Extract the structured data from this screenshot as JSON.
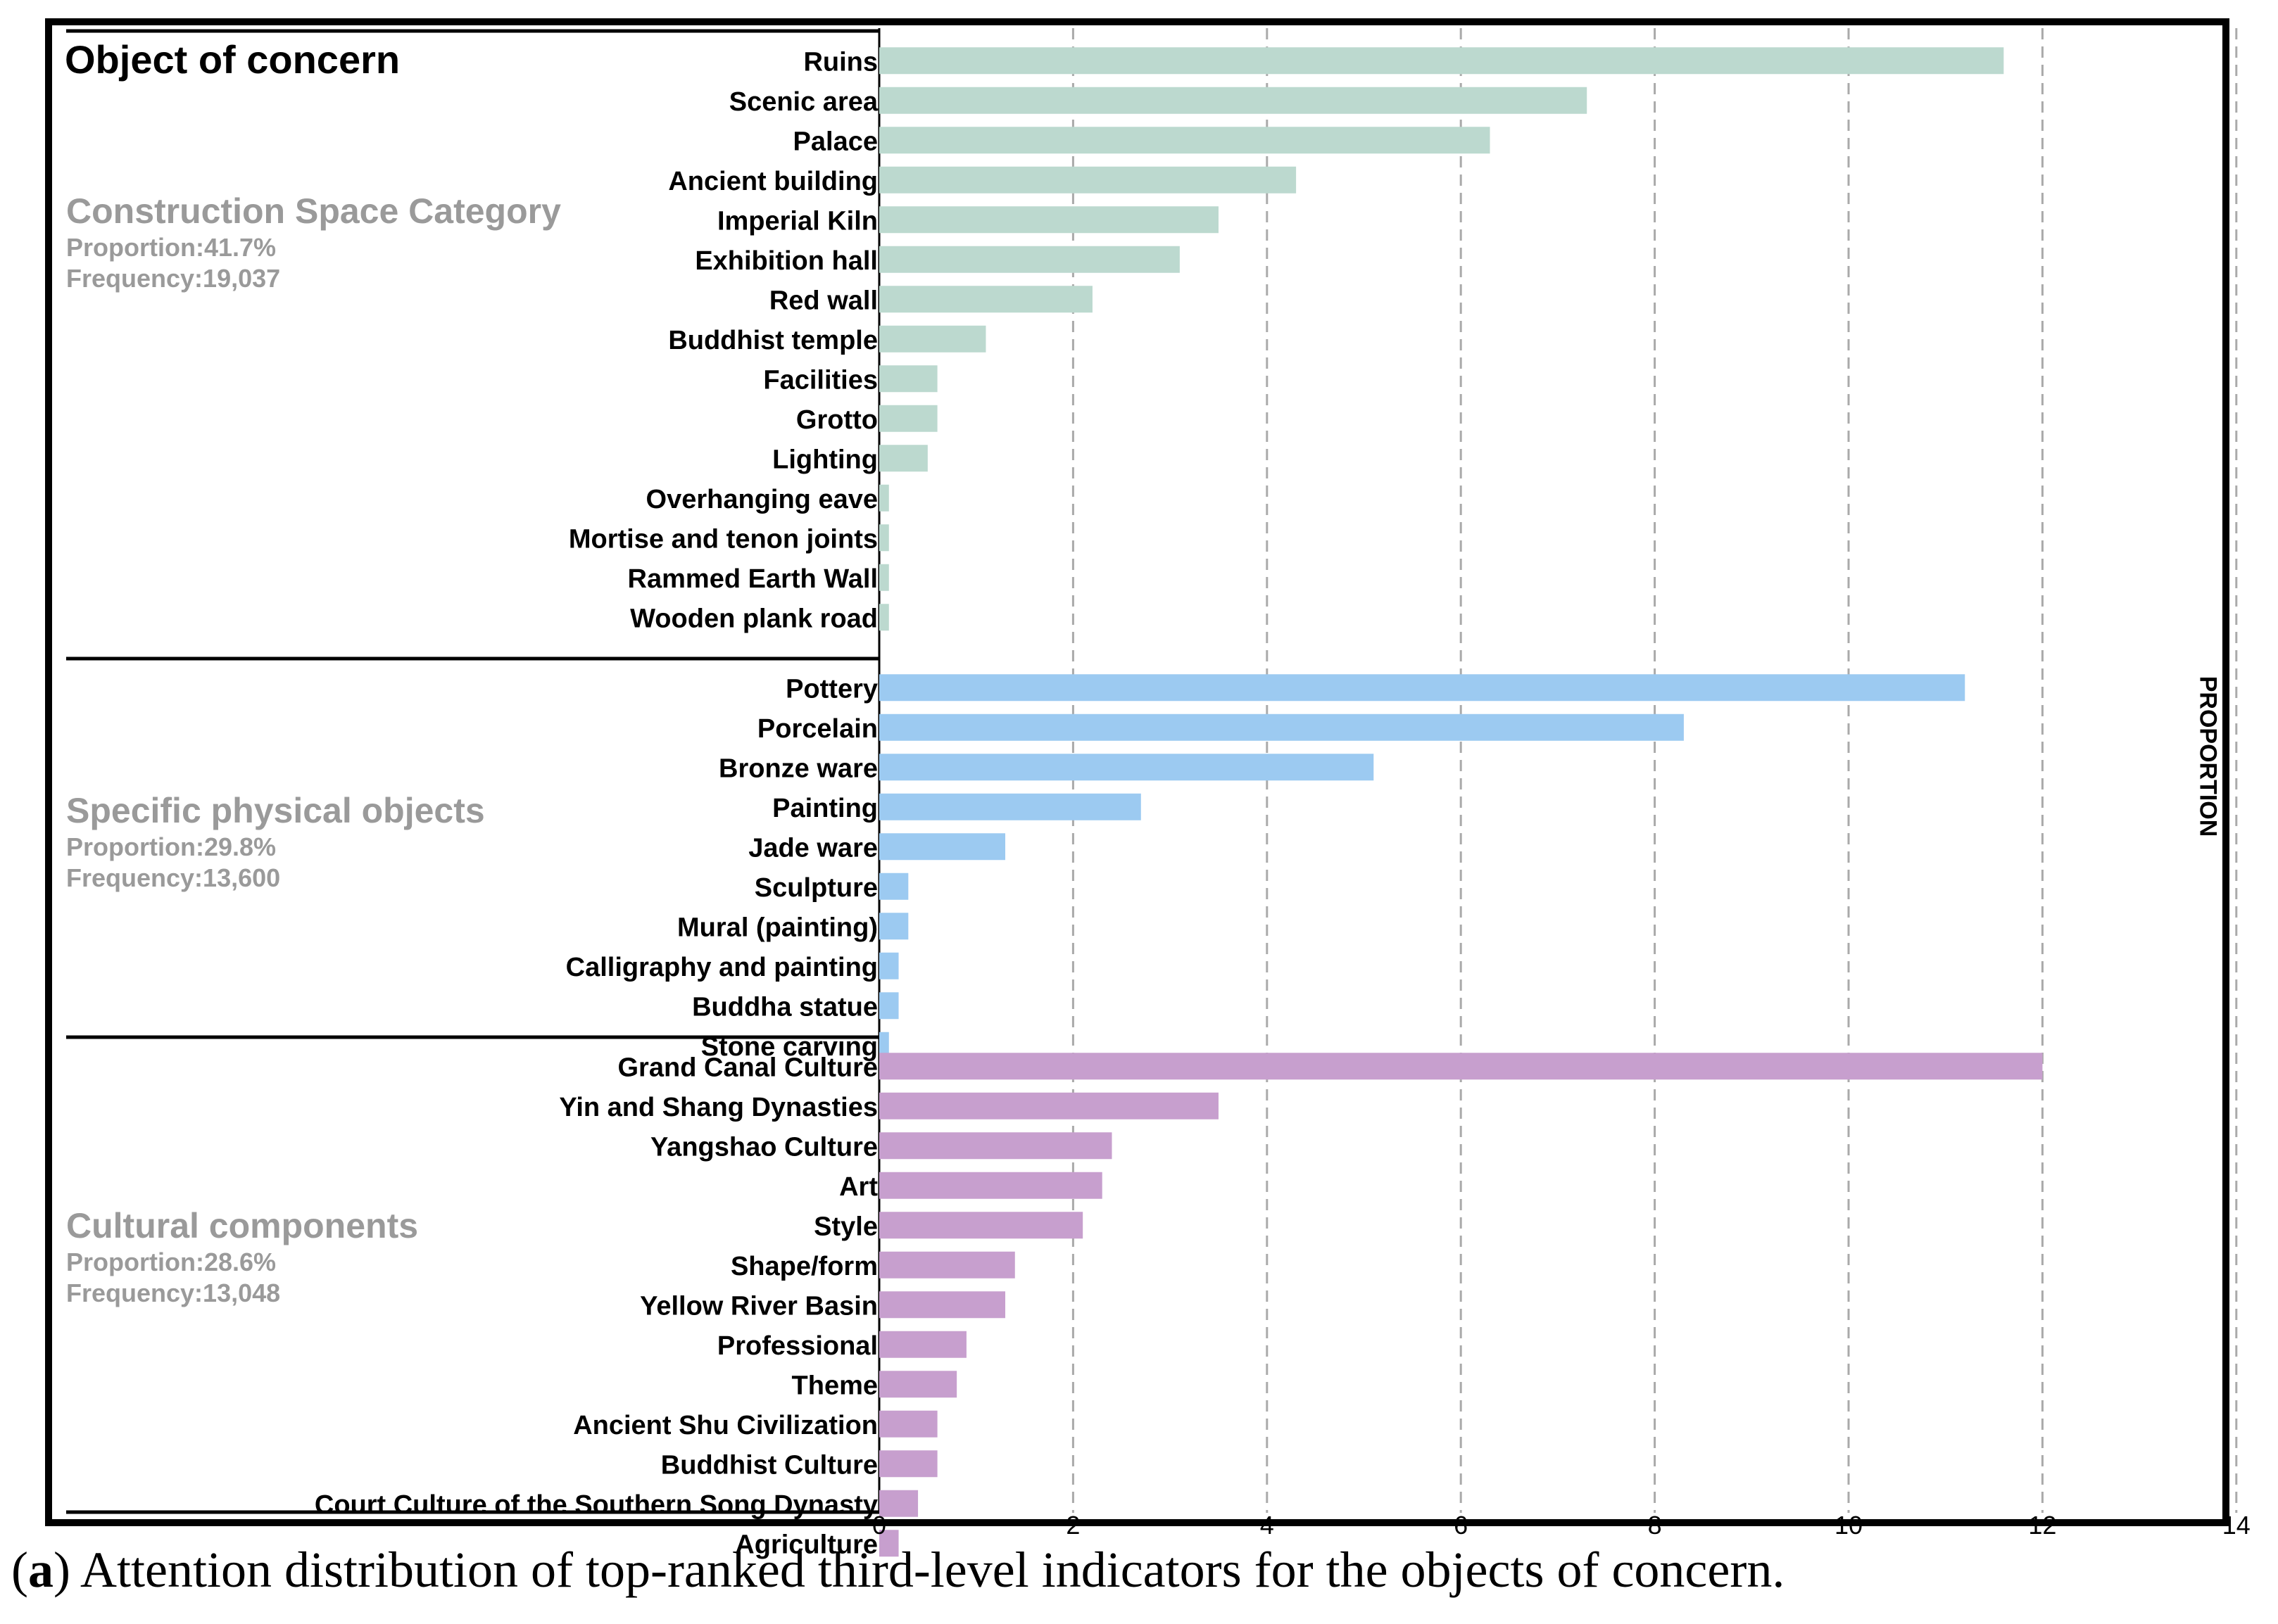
{
  "caption": {
    "letter": "a",
    "text": "Attention distribution of top-ranked third-level indicators for the objects of concern."
  },
  "colors": {
    "construction": "#bcd9cf",
    "physical": "#9ccaf1",
    "cultural": "#c79fce",
    "group_label": "#9a9a9a",
    "grid": "#aaaaaa"
  },
  "chart_data": {
    "type": "bar",
    "orientation": "horizontal",
    "title": "Object of concern",
    "ylabel": "PROPORTION",
    "xlim": [
      0,
      14
    ],
    "xticks": [
      0,
      2,
      4,
      6,
      8,
      10,
      12,
      14
    ],
    "grid": "vertical dashed",
    "groups": [
      {
        "name": "Construction Space Category",
        "proportion": "Proportion:41.7%",
        "frequency": "Frequency:19,037",
        "color": "#bcd9cf",
        "categories": [
          "Ruins",
          "Scenic area",
          "Palace",
          "Ancient building",
          "Imperial Kiln",
          "Exhibition hall",
          "Red wall",
          "Buddhist temple",
          "Facilities",
          "Grotto",
          "Lighting",
          "Overhanging eave",
          "Mortise and tenon joints",
          "Rammed Earth Wall",
          "Wooden plank road"
        ],
        "values": [
          11.6,
          7.3,
          6.3,
          4.3,
          3.5,
          3.1,
          2.2,
          1.1,
          0.6,
          0.6,
          0.5,
          0.1,
          0.1,
          0.1,
          0.1
        ]
      },
      {
        "name": "Specific physical objects",
        "proportion": "Proportion:29.8%",
        "frequency": "Frequency:13,600",
        "color": "#9ccaf1",
        "categories": [
          "Pottery",
          "Porcelain",
          "Bronze ware",
          "Painting",
          "Jade ware",
          "Sculpture",
          "Mural (painting)",
          "Calligraphy and painting",
          "Buddha statue",
          "Stone carving"
        ],
        "values": [
          11.2,
          8.3,
          5.1,
          2.7,
          1.3,
          0.3,
          0.3,
          0.2,
          0.2,
          0.1
        ]
      },
      {
        "name": "Cultural components",
        "proportion": "Proportion:28.6%",
        "frequency": "Frequency:13,048",
        "color": "#c79fce",
        "categories": [
          "Grand Canal Culture",
          "Yin and Shang Dynasties",
          "Yangshao Culture",
          "Art",
          "Style",
          "Shape/form",
          "Yellow River Basin",
          "Professional",
          "Theme",
          "Ancient Shu Civilization",
          "Buddhist Culture",
          "Court Culture of the Southern Song Dynasty",
          "Agriculture"
        ],
        "values": [
          12.0,
          3.5,
          2.4,
          2.3,
          2.1,
          1.4,
          1.3,
          0.9,
          0.8,
          0.6,
          0.6,
          0.4,
          0.2
        ]
      }
    ]
  }
}
